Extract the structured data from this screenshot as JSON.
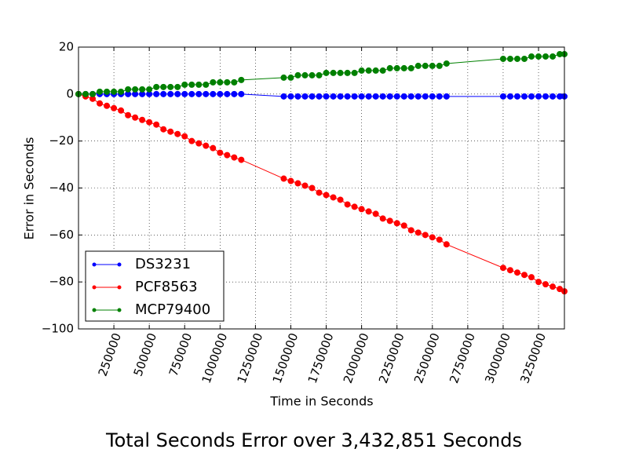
{
  "chart_data": {
    "type": "line",
    "title": "Total Seconds Error over 3,432,851 Seconds",
    "xlabel": "Time in Seconds",
    "ylabel": "Error in Seconds",
    "x": [
      0,
      50000,
      100000,
      150000,
      200000,
      250000,
      300000,
      350000,
      400000,
      450000,
      500000,
      550000,
      600000,
      650000,
      700000,
      750000,
      800000,
      850000,
      900000,
      950000,
      1000000,
      1050000,
      1100000,
      1150000,
      1450000,
      1500000,
      1550000,
      1600000,
      1650000,
      1700000,
      1750000,
      1800000,
      1850000,
      1900000,
      1950000,
      2000000,
      2050000,
      2100000,
      2150000,
      2200000,
      2250000,
      2300000,
      2350000,
      2400000,
      2450000,
      2500000,
      2550000,
      2600000,
      3000000,
      3050000,
      3100000,
      3150000,
      3200000,
      3250000,
      3300000,
      3350000,
      3400000,
      3432851
    ],
    "series": [
      {
        "name": "DS3231",
        "color": "#0000ff",
        "values": [
          0,
          0,
          0,
          0,
          0,
          0,
          0,
          0,
          0,
          0,
          0,
          0,
          0,
          0,
          0,
          0,
          0,
          0,
          0,
          0,
          0,
          0,
          0,
          0,
          -1,
          -1,
          -1,
          -1,
          -1,
          -1,
          -1,
          -1,
          -1,
          -1,
          -1,
          -1,
          -1,
          -1,
          -1,
          -1,
          -1,
          -1,
          -1,
          -1,
          -1,
          -1,
          -1,
          -1,
          -1,
          -1,
          -1,
          -1,
          -1,
          -1,
          -1,
          -1,
          -1,
          -1
        ]
      },
      {
        "name": "PCF8563",
        "color": "#ff0000",
        "values": [
          0,
          -1,
          -2,
          -4,
          -5,
          -6,
          -7,
          -9,
          -10,
          -11,
          -12,
          -13,
          -15,
          -16,
          -17,
          -18,
          -20,
          -21,
          -22,
          -23,
          -25,
          -26,
          -27,
          -28,
          -36,
          -37,
          -38,
          -39,
          -40,
          -42,
          -43,
          -44,
          -45,
          -47,
          -48,
          -49,
          -50,
          -51,
          -53,
          -54,
          -55,
          -56,
          -58,
          -59,
          -60,
          -61,
          -62,
          -64,
          -74,
          -75,
          -76,
          -77,
          -78,
          -80,
          -81,
          -82,
          -83,
          -84
        ]
      },
      {
        "name": "MCP79400",
        "color": "#008000",
        "values": [
          0,
          0,
          0,
          1,
          1,
          1,
          1,
          2,
          2,
          2,
          2,
          3,
          3,
          3,
          3,
          4,
          4,
          4,
          4,
          5,
          5,
          5,
          5,
          6,
          7,
          7,
          8,
          8,
          8,
          8,
          9,
          9,
          9,
          9,
          9,
          10,
          10,
          10,
          10,
          11,
          11,
          11,
          11,
          12,
          12,
          12,
          12,
          13,
          15,
          15,
          15,
          15,
          16,
          16,
          16,
          16,
          17,
          17
        ]
      }
    ],
    "xlim": [
      0,
      3432851
    ],
    "ylim": [
      -100,
      20
    ],
    "xticks": [
      250000,
      500000,
      750000,
      1000000,
      1250000,
      1500000,
      1750000,
      2000000,
      2250000,
      2500000,
      2750000,
      3000000,
      3250000
    ],
    "yticks": [
      {
        "value": -100,
        "label": "−100"
      },
      {
        "value": -80,
        "label": "−80"
      },
      {
        "value": -60,
        "label": "−60"
      },
      {
        "value": -40,
        "label": "−40"
      },
      {
        "value": -20,
        "label": "−20"
      },
      0,
      20
    ],
    "grid": true,
    "legend": "lower left"
  }
}
